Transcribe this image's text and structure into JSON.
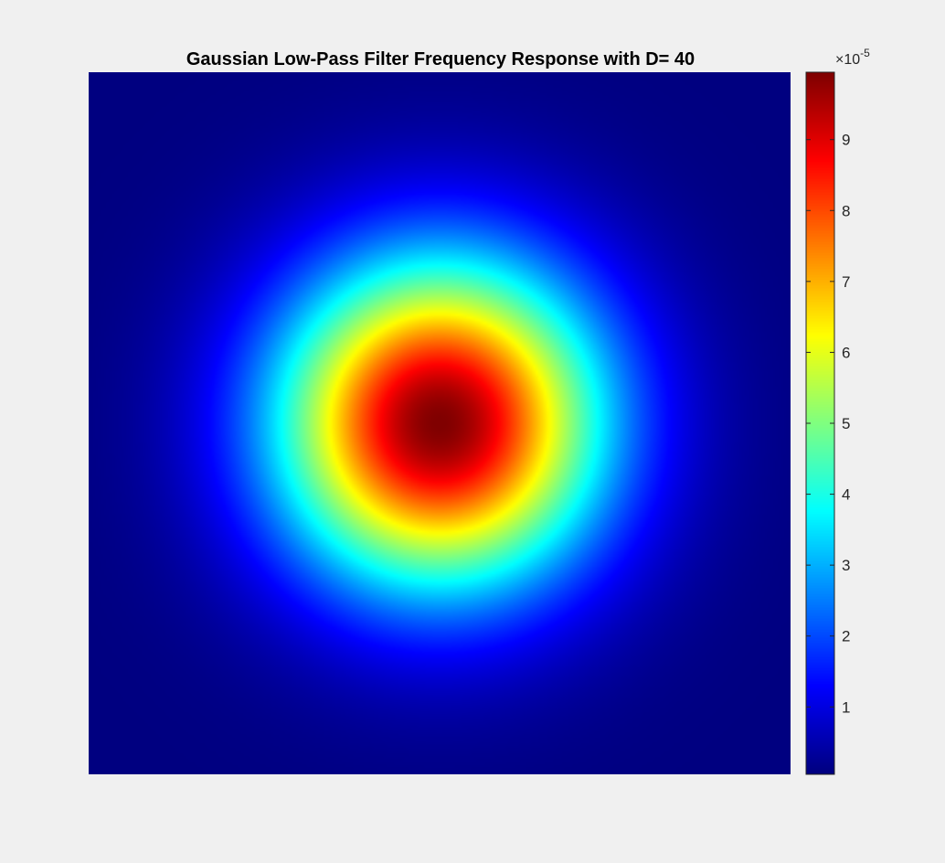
{
  "chart_data": {
    "type": "heatmap",
    "title": "Gaussian Low-Pass Filter Frequency Response with D= 40",
    "colormap": "jet",
    "axes_visible": false,
    "function": "gaussian-low-pass",
    "cutoff_D": 40,
    "peak_value": 9.95e-05,
    "min_value": 0,
    "colorbar": {
      "exponent_label": "×10",
      "exponent_power": "-5",
      "ticks": [
        1,
        2,
        3,
        4,
        5,
        6,
        7,
        8,
        9
      ],
      "tick_labels": [
        "1",
        "2",
        "3",
        "4",
        "5",
        "6",
        "7",
        "8",
        "9"
      ],
      "clim": [
        0.05,
        9.95
      ]
    }
  }
}
